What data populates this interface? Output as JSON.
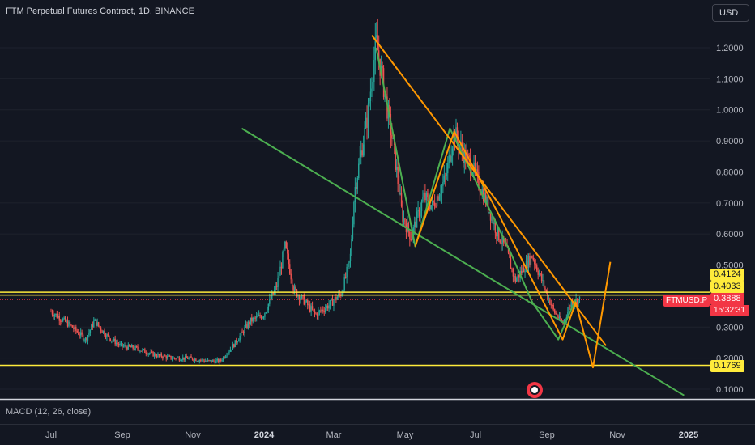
{
  "header": {
    "symbol_title": "FTM Perpetual Futures Contract, 1D, BINANCE",
    "currency_button": "USD"
  },
  "indicator": {
    "macd_label": "MACD (12, 26, close)"
  },
  "price_axis": {
    "ticks": [
      "1.2000",
      "1.1000",
      "1.0000",
      "0.9000",
      "0.8000",
      "0.7000",
      "0.6000",
      "0.5000",
      "0.4000",
      "0.3000",
      "0.2000",
      "0.1000"
    ]
  },
  "time_axis": {
    "labels": [
      "Jul",
      "Sep",
      "Nov",
      "2024",
      "Mar",
      "May",
      "Jul",
      "Sep",
      "Nov",
      "2025"
    ]
  },
  "price_tags": {
    "level_high": "0.4124",
    "level_mid": "0.4033",
    "level_low": "0.1769",
    "current_price": "0.3888",
    "ticker": "FTMUSD.P",
    "countdown": "15:32:31"
  },
  "colors": {
    "background": "#131722",
    "up": "#26a69a",
    "down": "#ef5350",
    "level_line": "#ffeb3b",
    "orange_drawing": "#ff9800",
    "green_drawing": "#4caf50",
    "price_tag": "#f23645"
  },
  "chart_data": {
    "type": "candlestick",
    "title": "FTM Perpetual Futures Contract, 1D, BINANCE",
    "x_labels": [
      "Jul",
      "Sep",
      "Nov",
      "2024",
      "Mar",
      "May",
      "Jul",
      "Sep",
      "Nov",
      "2025"
    ],
    "ylim": [
      0.06,
      1.31
    ],
    "horizontal_levels": [
      0.4124,
      0.4033,
      0.1769
    ],
    "current_price": 0.3888,
    "close_series": [
      [
        2023.5,
        0.35
      ],
      [
        2023.54,
        0.31
      ],
      [
        2023.58,
        0.26
      ],
      [
        2023.6,
        0.32
      ],
      [
        2023.63,
        0.27
      ],
      [
        2023.66,
        0.24
      ],
      [
        2023.7,
        0.23
      ],
      [
        2023.74,
        0.21
      ],
      [
        2023.78,
        0.2
      ],
      [
        2023.82,
        0.2
      ],
      [
        2023.86,
        0.19
      ],
      [
        2023.89,
        0.19
      ],
      [
        2023.92,
        0.24
      ],
      [
        2023.96,
        0.32
      ],
      [
        2023.99,
        0.34
      ],
      [
        2024.02,
        0.43
      ],
      [
        2024.04,
        0.56
      ],
      [
        2024.06,
        0.42
      ],
      [
        2024.08,
        0.39
      ],
      [
        2024.11,
        0.34
      ],
      [
        2024.14,
        0.37
      ],
      [
        2024.17,
        0.41
      ],
      [
        2024.19,
        0.52
      ],
      [
        2024.2,
        0.74
      ],
      [
        2024.23,
        0.98
      ],
      [
        2024.25,
        1.22
      ],
      [
        2024.27,
        1.05
      ],
      [
        2024.29,
        0.88
      ],
      [
        2024.31,
        0.66
      ],
      [
        2024.33,
        0.59
      ],
      [
        2024.36,
        0.72
      ],
      [
        2024.38,
        0.69
      ],
      [
        2024.41,
        0.78
      ],
      [
        2024.43,
        0.93
      ],
      [
        2024.45,
        0.86
      ],
      [
        2024.47,
        0.82
      ],
      [
        2024.5,
        0.72
      ],
      [
        2024.53,
        0.6
      ],
      [
        2024.55,
        0.55
      ],
      [
        2024.57,
        0.45
      ],
      [
        2024.59,
        0.49
      ],
      [
        2024.61,
        0.53
      ],
      [
        2024.64,
        0.42
      ],
      [
        2024.66,
        0.35
      ],
      [
        2024.68,
        0.31
      ],
      [
        2024.7,
        0.38
      ],
      [
        2024.72,
        0.39
      ]
    ],
    "drawings": {
      "orange_descending_trendline": [
        [
          2024.24,
          1.24
        ],
        [
          2024.78,
          0.24
        ]
      ],
      "green_descending_trendline": [
        [
          2023.94,
          0.94
        ],
        [
          2024.96,
          0.08
        ]
      ],
      "orange_zigzag": [
        [
          2024.34,
          0.56
        ],
        [
          2024.43,
          0.93
        ],
        [
          2024.53,
          0.67
        ],
        [
          2024.68,
          0.26
        ],
        [
          2024.71,
          0.38
        ],
        [
          2024.75,
          0.17
        ],
        [
          2024.79,
          0.51
        ]
      ],
      "green_zigzag": [
        [
          2024.25,
          1.2
        ],
        [
          2024.34,
          0.56
        ],
        [
          2024.42,
          0.94
        ],
        [
          2024.56,
          0.54
        ],
        [
          2024.61,
          0.38
        ],
        [
          2024.67,
          0.26
        ],
        [
          2024.71,
          0.39
        ]
      ]
    }
  }
}
